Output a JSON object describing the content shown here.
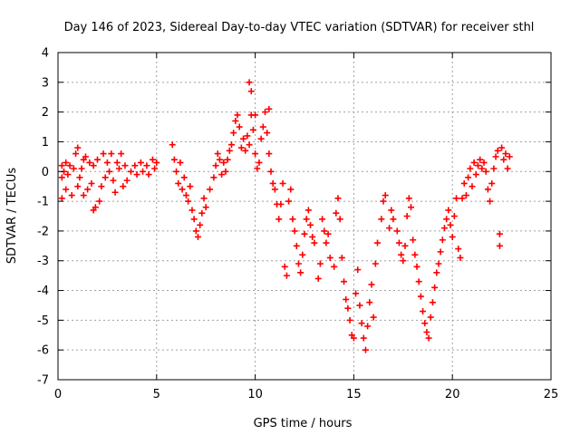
{
  "chart_data": {
    "type": "scatter",
    "title": "Day 146 of 2023, Sidereal Day-to-day VTEC variation (SDTVAR) for receiver sthl",
    "xlabel": "GPS time / hours",
    "ylabel": "SDTVAR / TECUs",
    "xlim": [
      0,
      25
    ],
    "ylim": [
      -7,
      4
    ],
    "xticks": [
      0,
      5,
      10,
      15,
      20,
      25
    ],
    "yticks": [
      -7,
      -6,
      -5,
      -4,
      -3,
      -2,
      -1,
      0,
      1,
      2,
      3,
      4
    ],
    "grid": true,
    "marker": "+",
    "color": "#ff0000",
    "series": [
      {
        "name": "sthl",
        "points": [
          [
            0.2,
            -0.9
          ],
          [
            0.2,
            -0.2
          ],
          [
            0.2,
            0.2
          ],
          [
            0.3,
            0.0
          ],
          [
            0.4,
            0.3
          ],
          [
            0.4,
            -0.6
          ],
          [
            0.5,
            -0.1
          ],
          [
            0.6,
            0.2
          ],
          [
            0.7,
            -0.8
          ],
          [
            0.8,
            0.1
          ],
          [
            0.9,
            0.6
          ],
          [
            1.0,
            0.8
          ],
          [
            1.0,
            -0.5
          ],
          [
            1.1,
            -0.2
          ],
          [
            1.2,
            0.1
          ],
          [
            1.3,
            0.4
          ],
          [
            1.3,
            -0.8
          ],
          [
            1.4,
            0.5
          ],
          [
            1.5,
            -0.6
          ],
          [
            1.6,
            0.3
          ],
          [
            1.7,
            -0.4
          ],
          [
            1.8,
            0.2
          ],
          [
            1.8,
            -1.3
          ],
          [
            1.9,
            -1.2
          ],
          [
            2.0,
            0.4
          ],
          [
            2.1,
            -1.0
          ],
          [
            2.2,
            -0.5
          ],
          [
            2.3,
            0.6
          ],
          [
            2.4,
            -0.2
          ],
          [
            2.5,
            0.3
          ],
          [
            2.6,
            0.0
          ],
          [
            2.7,
            0.6
          ],
          [
            2.8,
            -0.3
          ],
          [
            2.9,
            -0.7
          ],
          [
            3.0,
            0.3
          ],
          [
            3.1,
            0.1
          ],
          [
            3.2,
            0.6
          ],
          [
            3.3,
            -0.5
          ],
          [
            3.4,
            0.2
          ],
          [
            3.5,
            -0.3
          ],
          [
            3.7,
            0.0
          ],
          [
            3.9,
            0.2
          ],
          [
            4.0,
            -0.1
          ],
          [
            4.2,
            0.3
          ],
          [
            4.3,
            0.0
          ],
          [
            4.5,
            0.2
          ],
          [
            4.6,
            -0.1
          ],
          [
            4.8,
            0.4
          ],
          [
            4.9,
            0.1
          ],
          [
            5.0,
            0.3
          ],
          [
            5.8,
            0.9
          ],
          [
            5.9,
            0.4
          ],
          [
            6.0,
            0.0
          ],
          [
            6.1,
            -0.4
          ],
          [
            6.2,
            0.3
          ],
          [
            6.3,
            -0.6
          ],
          [
            6.4,
            -0.2
          ],
          [
            6.5,
            -0.8
          ],
          [
            6.6,
            -1.0
          ],
          [
            6.7,
            -0.5
          ],
          [
            6.8,
            -1.3
          ],
          [
            6.9,
            -1.6
          ],
          [
            7.0,
            -2.0
          ],
          [
            7.1,
            -2.2
          ],
          [
            7.2,
            -1.8
          ],
          [
            7.3,
            -1.4
          ],
          [
            7.4,
            -0.9
          ],
          [
            7.5,
            -1.2
          ],
          [
            7.7,
            -0.6
          ],
          [
            7.9,
            -0.2
          ],
          [
            8.0,
            0.2
          ],
          [
            8.1,
            0.6
          ],
          [
            8.2,
            0.4
          ],
          [
            8.3,
            -0.1
          ],
          [
            8.4,
            0.3
          ],
          [
            8.5,
            0.0
          ],
          [
            8.6,
            0.4
          ],
          [
            8.7,
            0.7
          ],
          [
            8.8,
            0.9
          ],
          [
            8.9,
            1.3
          ],
          [
            9.0,
            1.7
          ],
          [
            9.1,
            1.9
          ],
          [
            9.2,
            1.5
          ],
          [
            9.3,
            0.8
          ],
          [
            9.4,
            1.1
          ],
          [
            9.5,
            0.7
          ],
          [
            9.6,
            1.2
          ],
          [
            9.7,
            0.9
          ],
          [
            9.7,
            3.0
          ],
          [
            9.8,
            2.7
          ],
          [
            9.8,
            1.9
          ],
          [
            9.9,
            1.4
          ],
          [
            10.0,
            1.9
          ],
          [
            10.0,
            0.6
          ],
          [
            10.1,
            0.1
          ],
          [
            10.2,
            0.3
          ],
          [
            10.3,
            1.1
          ],
          [
            10.4,
            1.5
          ],
          [
            10.5,
            2.0
          ],
          [
            10.6,
            1.3
          ],
          [
            10.7,
            0.6
          ],
          [
            10.7,
            2.1
          ],
          [
            10.8,
            0.0
          ],
          [
            10.9,
            -0.4
          ],
          [
            11.0,
            -0.6
          ],
          [
            11.1,
            -1.1
          ],
          [
            11.2,
            -1.6
          ],
          [
            11.3,
            -1.1
          ],
          [
            11.4,
            -0.4
          ],
          [
            11.5,
            -3.2
          ],
          [
            11.6,
            -3.5
          ],
          [
            11.7,
            -1.0
          ],
          [
            11.8,
            -0.6
          ],
          [
            11.9,
            -1.6
          ],
          [
            12.0,
            -2.0
          ],
          [
            12.1,
            -2.5
          ],
          [
            12.2,
            -3.1
          ],
          [
            12.3,
            -3.4
          ],
          [
            12.4,
            -2.8
          ],
          [
            12.5,
            -2.1
          ],
          [
            12.6,
            -1.6
          ],
          [
            12.7,
            -1.3
          ],
          [
            12.8,
            -1.8
          ],
          [
            12.9,
            -2.2
          ],
          [
            13.0,
            -2.4
          ],
          [
            13.2,
            -3.6
          ],
          [
            13.3,
            -3.1
          ],
          [
            13.4,
            -1.6
          ],
          [
            13.5,
            -2.0
          ],
          [
            13.6,
            -2.4
          ],
          [
            13.7,
            -2.1
          ],
          [
            13.8,
            -2.9
          ],
          [
            14.0,
            -3.2
          ],
          [
            14.1,
            -1.4
          ],
          [
            14.2,
            -0.9
          ],
          [
            14.3,
            -1.6
          ],
          [
            14.4,
            -2.9
          ],
          [
            14.5,
            -3.7
          ],
          [
            14.6,
            -4.3
          ],
          [
            14.7,
            -4.6
          ],
          [
            14.8,
            -5.0
          ],
          [
            14.9,
            -5.5
          ],
          [
            15.0,
            -5.6
          ],
          [
            15.1,
            -4.1
          ],
          [
            15.2,
            -3.3
          ],
          [
            15.3,
            -4.5
          ],
          [
            15.4,
            -5.1
          ],
          [
            15.5,
            -5.6
          ],
          [
            15.6,
            -6.0
          ],
          [
            15.7,
            -5.2
          ],
          [
            15.8,
            -4.4
          ],
          [
            15.9,
            -3.8
          ],
          [
            16.0,
            -4.9
          ],
          [
            16.1,
            -3.1
          ],
          [
            16.2,
            -2.4
          ],
          [
            16.4,
            -1.6
          ],
          [
            16.5,
            -1.0
          ],
          [
            16.6,
            -0.8
          ],
          [
            16.8,
            -1.9
          ],
          [
            16.9,
            -1.3
          ],
          [
            17.0,
            -1.6
          ],
          [
            17.2,
            -2.0
          ],
          [
            17.3,
            -2.4
          ],
          [
            17.4,
            -2.8
          ],
          [
            17.5,
            -3.0
          ],
          [
            17.6,
            -2.5
          ],
          [
            17.7,
            -1.5
          ],
          [
            17.8,
            -0.9
          ],
          [
            17.9,
            -1.2
          ],
          [
            18.0,
            -2.3
          ],
          [
            18.1,
            -2.8
          ],
          [
            18.2,
            -3.2
          ],
          [
            18.3,
            -3.7
          ],
          [
            18.4,
            -4.2
          ],
          [
            18.5,
            -4.7
          ],
          [
            18.6,
            -5.1
          ],
          [
            18.7,
            -5.4
          ],
          [
            18.8,
            -5.6
          ],
          [
            18.9,
            -4.9
          ],
          [
            19.0,
            -4.4
          ],
          [
            19.1,
            -3.9
          ],
          [
            19.2,
            -3.4
          ],
          [
            19.3,
            -3.1
          ],
          [
            19.4,
            -2.7
          ],
          [
            19.5,
            -2.3
          ],
          [
            19.6,
            -1.9
          ],
          [
            19.7,
            -1.6
          ],
          [
            19.8,
            -1.3
          ],
          [
            19.9,
            -1.8
          ],
          [
            20.0,
            -2.2
          ],
          [
            20.1,
            -1.5
          ],
          [
            20.2,
            -0.9
          ],
          [
            20.3,
            -2.6
          ],
          [
            20.4,
            -2.9
          ],
          [
            20.5,
            -0.9
          ],
          [
            20.6,
            -0.4
          ],
          [
            20.7,
            -0.8
          ],
          [
            20.8,
            -0.2
          ],
          [
            20.9,
            0.1
          ],
          [
            21.0,
            -0.5
          ],
          [
            21.1,
            0.3
          ],
          [
            21.2,
            -0.1
          ],
          [
            21.3,
            0.2
          ],
          [
            21.4,
            0.4
          ],
          [
            21.5,
            0.1
          ],
          [
            21.6,
            0.3
          ],
          [
            21.7,
            0.0
          ],
          [
            21.8,
            -0.6
          ],
          [
            21.9,
            -1.0
          ],
          [
            22.0,
            -0.4
          ],
          [
            22.1,
            0.1
          ],
          [
            22.2,
            0.5
          ],
          [
            22.3,
            0.7
          ],
          [
            22.4,
            -2.1
          ],
          [
            22.4,
            -2.5
          ],
          [
            22.5,
            0.8
          ],
          [
            22.6,
            0.4
          ],
          [
            22.7,
            0.6
          ],
          [
            22.8,
            0.1
          ],
          [
            22.9,
            0.5
          ]
        ]
      }
    ]
  }
}
